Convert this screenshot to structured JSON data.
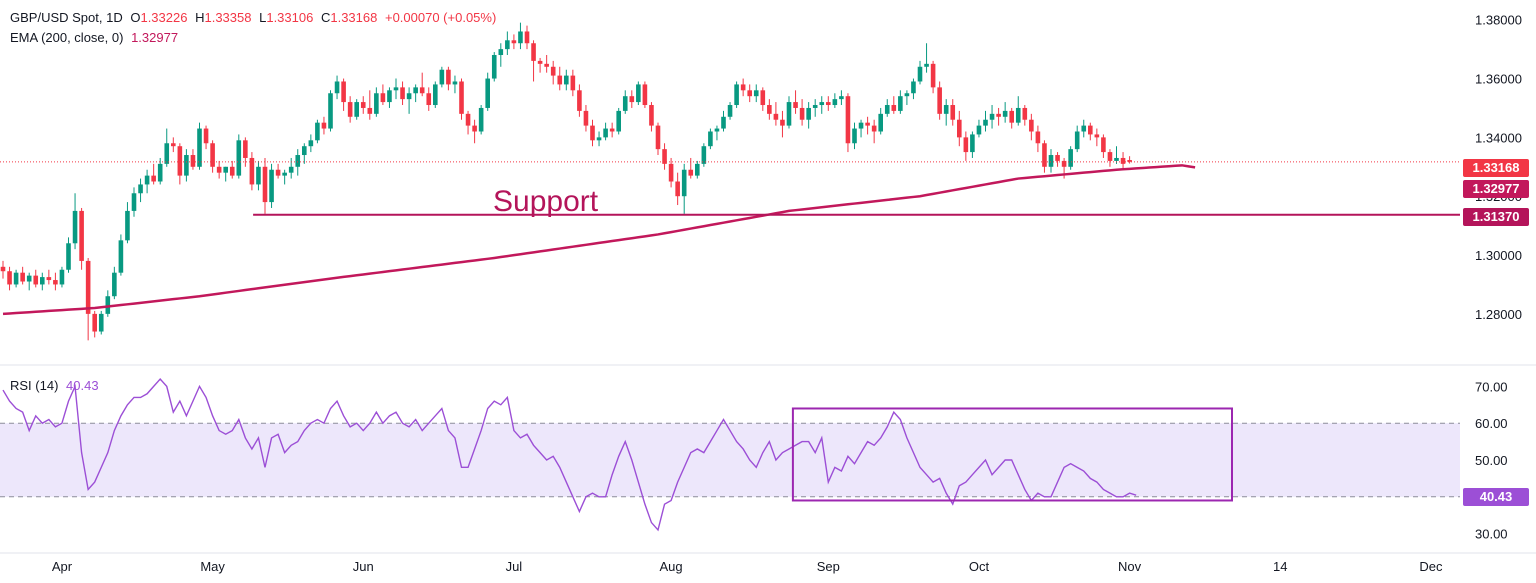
{
  "header": {
    "symbol": "GBP/USD Spot, 1D",
    "open_label": "O",
    "open": "1.33226",
    "high_label": "H",
    "high": "1.33358",
    "low_label": "L",
    "low": "1.33106",
    "close_label": "C",
    "close": "1.33168",
    "change": "+0.00070 (+0.05%)"
  },
  "ema_legend": {
    "label": "EMA (200, close, 0)",
    "value": "1.32977"
  },
  "rsi_legend": {
    "label": "RSI (14)",
    "value": "40.43"
  },
  "tags": {
    "last_price": "1.33168",
    "ema": "1.32977",
    "support": "1.31370",
    "rsi": "40.43"
  },
  "annotation": {
    "support_text": "Support"
  },
  "colors": {
    "up": "#089981",
    "down": "#f23645",
    "ema": "#c2185b",
    "support": "#b4145a",
    "rsi": "#9c4fd6",
    "rsi_band": "#ede7fb",
    "box": "#9c27b0"
  },
  "chart_data": [
    {
      "type": "candlestick",
      "ylim": [
        1.265,
        1.385
      ],
      "y_ticks": [
        "1.28000",
        "1.30000",
        "1.32000",
        "1.34000",
        "1.36000",
        "1.38000"
      ],
      "x_ticks": [
        "Apr",
        "May",
        "Jun",
        "Jul",
        "Aug",
        "Sep",
        "Oct",
        "Nov",
        "14",
        "Dec"
      ],
      "candles": [
        [
          1.296,
          1.298,
          1.292,
          1.2945
        ],
        [
          1.2945,
          1.296,
          1.288,
          1.29
        ],
        [
          1.29,
          1.295,
          1.289,
          1.294
        ],
        [
          1.294,
          1.296,
          1.29,
          1.291
        ],
        [
          1.291,
          1.294,
          1.288,
          1.293
        ],
        [
          1.293,
          1.295,
          1.289,
          1.29
        ],
        [
          1.29,
          1.294,
          1.288,
          1.2925
        ],
        [
          1.2925,
          1.295,
          1.29,
          1.2915
        ],
        [
          1.2915,
          1.294,
          1.288,
          1.29
        ],
        [
          1.29,
          1.296,
          1.289,
          1.295
        ],
        [
          1.295,
          1.306,
          1.294,
          1.304
        ],
        [
          1.304,
          1.321,
          1.302,
          1.315
        ],
        [
          1.315,
          1.316,
          1.295,
          1.298
        ],
        [
          1.298,
          1.299,
          1.271,
          1.28
        ],
        [
          1.28,
          1.281,
          1.272,
          1.274
        ],
        [
          1.274,
          1.281,
          1.273,
          1.28
        ],
        [
          1.28,
          1.288,
          1.279,
          1.286
        ],
        [
          1.286,
          1.296,
          1.285,
          1.294
        ],
        [
          1.294,
          1.307,
          1.293,
          1.305
        ],
        [
          1.305,
          1.318,
          1.304,
          1.315
        ],
        [
          1.315,
          1.323,
          1.313,
          1.321
        ],
        [
          1.321,
          1.326,
          1.318,
          1.324
        ],
        [
          1.324,
          1.329,
          1.321,
          1.327
        ],
        [
          1.327,
          1.331,
          1.324,
          1.325
        ],
        [
          1.325,
          1.333,
          1.324,
          1.331
        ],
        [
          1.331,
          1.343,
          1.33,
          1.338
        ],
        [
          1.338,
          1.34,
          1.335,
          1.337
        ],
        [
          1.337,
          1.338,
          1.324,
          1.327
        ],
        [
          1.327,
          1.336,
          1.325,
          1.334
        ],
        [
          1.334,
          1.336,
          1.329,
          1.33
        ],
        [
          1.33,
          1.345,
          1.329,
          1.343
        ],
        [
          1.343,
          1.344,
          1.336,
          1.338
        ],
        [
          1.338,
          1.339,
          1.328,
          1.33
        ],
        [
          1.33,
          1.332,
          1.326,
          1.328
        ],
        [
          1.328,
          1.33,
          1.325,
          1.33
        ],
        [
          1.33,
          1.332,
          1.326,
          1.327
        ],
        [
          1.327,
          1.341,
          1.326,
          1.339
        ],
        [
          1.339,
          1.34,
          1.33,
          1.333
        ],
        [
          1.333,
          1.335,
          1.322,
          1.324
        ],
        [
          1.324,
          1.332,
          1.322,
          1.33
        ],
        [
          1.33,
          1.333,
          1.314,
          1.318
        ],
        [
          1.318,
          1.331,
          1.316,
          1.329
        ],
        [
          1.329,
          1.331,
          1.326,
          1.327
        ],
        [
          1.327,
          1.329,
          1.324,
          1.328
        ],
        [
          1.328,
          1.333,
          1.326,
          1.33
        ],
        [
          1.33,
          1.336,
          1.327,
          1.334
        ],
        [
          1.334,
          1.338,
          1.331,
          1.337
        ],
        [
          1.337,
          1.341,
          1.335,
          1.339
        ],
        [
          1.339,
          1.346,
          1.338,
          1.345
        ],
        [
          1.345,
          1.347,
          1.341,
          1.343
        ],
        [
          1.343,
          1.356,
          1.342,
          1.355
        ],
        [
          1.355,
          1.361,
          1.353,
          1.359
        ],
        [
          1.359,
          1.36,
          1.349,
          1.352
        ],
        [
          1.352,
          1.354,
          1.345,
          1.347
        ],
        [
          1.347,
          1.353,
          1.346,
          1.352
        ],
        [
          1.352,
          1.354,
          1.348,
          1.35
        ],
        [
          1.35,
          1.356,
          1.346,
          1.348
        ],
        [
          1.348,
          1.357,
          1.347,
          1.355
        ],
        [
          1.355,
          1.358,
          1.351,
          1.352
        ],
        [
          1.352,
          1.357,
          1.35,
          1.356
        ],
        [
          1.356,
          1.36,
          1.353,
          1.357
        ],
        [
          1.357,
          1.359,
          1.351,
          1.353
        ],
        [
          1.353,
          1.357,
          1.348,
          1.355
        ],
        [
          1.355,
          1.358,
          1.352,
          1.357
        ],
        [
          1.357,
          1.362,
          1.354,
          1.355
        ],
        [
          1.355,
          1.357,
          1.349,
          1.351
        ],
        [
          1.351,
          1.359,
          1.35,
          1.358
        ],
        [
          1.358,
          1.364,
          1.357,
          1.363
        ],
        [
          1.363,
          1.364,
          1.356,
          1.358
        ],
        [
          1.358,
          1.361,
          1.355,
          1.359
        ],
        [
          1.359,
          1.36,
          1.346,
          1.348
        ],
        [
          1.348,
          1.349,
          1.341,
          1.344
        ],
        [
          1.344,
          1.346,
          1.338,
          1.342
        ],
        [
          1.342,
          1.351,
          1.341,
          1.35
        ],
        [
          1.35,
          1.362,
          1.349,
          1.36
        ],
        [
          1.36,
          1.369,
          1.359,
          1.368
        ],
        [
          1.368,
          1.372,
          1.364,
          1.37
        ],
        [
          1.37,
          1.376,
          1.368,
          1.373
        ],
        [
          1.373,
          1.375,
          1.37,
          1.372
        ],
        [
          1.372,
          1.379,
          1.37,
          1.376
        ],
        [
          1.376,
          1.378,
          1.37,
          1.372
        ],
        [
          1.372,
          1.373,
          1.359,
          1.366
        ],
        [
          1.366,
          1.367,
          1.362,
          1.365
        ],
        [
          1.365,
          1.368,
          1.362,
          1.364
        ],
        [
          1.364,
          1.366,
          1.358,
          1.361
        ],
        [
          1.361,
          1.364,
          1.356,
          1.358
        ],
        [
          1.358,
          1.363,
          1.356,
          1.361
        ],
        [
          1.361,
          1.363,
          1.354,
          1.356
        ],
        [
          1.356,
          1.358,
          1.347,
          1.349
        ],
        [
          1.349,
          1.351,
          1.342,
          1.344
        ],
        [
          1.344,
          1.346,
          1.337,
          1.339
        ],
        [
          1.339,
          1.342,
          1.337,
          1.34
        ],
        [
          1.34,
          1.345,
          1.339,
          1.343
        ],
        [
          1.343,
          1.345,
          1.34,
          1.342
        ],
        [
          1.342,
          1.35,
          1.341,
          1.349
        ],
        [
          1.349,
          1.356,
          1.348,
          1.354
        ],
        [
          1.354,
          1.356,
          1.35,
          1.352
        ],
        [
          1.352,
          1.359,
          1.351,
          1.358
        ],
        [
          1.358,
          1.359,
          1.35,
          1.351
        ],
        [
          1.351,
          1.352,
          1.342,
          1.344
        ],
        [
          1.344,
          1.345,
          1.334,
          1.336
        ],
        [
          1.336,
          1.338,
          1.329,
          1.331
        ],
        [
          1.331,
          1.333,
          1.323,
          1.325
        ],
        [
          1.325,
          1.328,
          1.317,
          1.32
        ],
        [
          1.32,
          1.331,
          1.314,
          1.329
        ],
        [
          1.329,
          1.333,
          1.326,
          1.327
        ],
        [
          1.327,
          1.332,
          1.326,
          1.331
        ],
        [
          1.331,
          1.338,
          1.33,
          1.337
        ],
        [
          1.337,
          1.343,
          1.336,
          1.342
        ],
        [
          1.342,
          1.344,
          1.339,
          1.343
        ],
        [
          1.343,
          1.349,
          1.342,
          1.347
        ],
        [
          1.347,
          1.352,
          1.346,
          1.351
        ],
        [
          1.351,
          1.359,
          1.35,
          1.358
        ],
        [
          1.358,
          1.36,
          1.354,
          1.356
        ],
        [
          1.356,
          1.358,
          1.352,
          1.354
        ],
        [
          1.354,
          1.358,
          1.352,
          1.356
        ],
        [
          1.356,
          1.357,
          1.349,
          1.351
        ],
        [
          1.351,
          1.353,
          1.346,
          1.348
        ],
        [
          1.348,
          1.352,
          1.344,
          1.346
        ],
        [
          1.346,
          1.349,
          1.34,
          1.344
        ],
        [
          1.344,
          1.354,
          1.343,
          1.352
        ],
        [
          1.352,
          1.356,
          1.348,
          1.35
        ],
        [
          1.35,
          1.353,
          1.344,
          1.346
        ],
        [
          1.346,
          1.352,
          1.343,
          1.35
        ],
        [
          1.35,
          1.353,
          1.347,
          1.351
        ],
        [
          1.351,
          1.354,
          1.348,
          1.352
        ],
        [
          1.352,
          1.354,
          1.349,
          1.351
        ],
        [
          1.351,
          1.355,
          1.35,
          1.353
        ],
        [
          1.353,
          1.356,
          1.351,
          1.354
        ],
        [
          1.354,
          1.355,
          1.335,
          1.338
        ],
        [
          1.338,
          1.345,
          1.336,
          1.343
        ],
        [
          1.343,
          1.346,
          1.34,
          1.345
        ],
        [
          1.345,
          1.347,
          1.341,
          1.344
        ],
        [
          1.344,
          1.346,
          1.338,
          1.342
        ],
        [
          1.342,
          1.35,
          1.341,
          1.348
        ],
        [
          1.348,
          1.353,
          1.347,
          1.351
        ],
        [
          1.351,
          1.354,
          1.348,
          1.349
        ],
        [
          1.349,
          1.356,
          1.348,
          1.354
        ],
        [
          1.354,
          1.356,
          1.351,
          1.355
        ],
        [
          1.355,
          1.36,
          1.353,
          1.359
        ],
        [
          1.359,
          1.366,
          1.358,
          1.364
        ],
        [
          1.364,
          1.372,
          1.362,
          1.365
        ],
        [
          1.365,
          1.366,
          1.355,
          1.357
        ],
        [
          1.357,
          1.359,
          1.346,
          1.348
        ],
        [
          1.348,
          1.353,
          1.344,
          1.351
        ],
        [
          1.351,
          1.353,
          1.344,
          1.346
        ],
        [
          1.346,
          1.349,
          1.337,
          1.34
        ],
        [
          1.34,
          1.342,
          1.332,
          1.335
        ],
        [
          1.335,
          1.342,
          1.333,
          1.341
        ],
        [
          1.341,
          1.346,
          1.34,
          1.344
        ],
        [
          1.344,
          1.349,
          1.342,
          1.346
        ],
        [
          1.346,
          1.351,
          1.343,
          1.348
        ],
        [
          1.348,
          1.35,
          1.344,
          1.347
        ],
        [
          1.347,
          1.352,
          1.345,
          1.349
        ],
        [
          1.349,
          1.35,
          1.343,
          1.345
        ],
        [
          1.345,
          1.354,
          1.344,
          1.35
        ],
        [
          1.35,
          1.351,
          1.344,
          1.346
        ],
        [
          1.346,
          1.348,
          1.339,
          1.342
        ],
        [
          1.342,
          1.344,
          1.335,
          1.338
        ],
        [
          1.338,
          1.339,
          1.328,
          1.33
        ],
        [
          1.33,
          1.336,
          1.328,
          1.334
        ],
        [
          1.334,
          1.335,
          1.33,
          1.332
        ],
        [
          1.332,
          1.333,
          1.326,
          1.33
        ],
        [
          1.33,
          1.337,
          1.329,
          1.336
        ],
        [
          1.336,
          1.344,
          1.335,
          1.342
        ],
        [
          1.342,
          1.346,
          1.34,
          1.344
        ],
        [
          1.344,
          1.345,
          1.339,
          1.341
        ],
        [
          1.341,
          1.343,
          1.337,
          1.34
        ],
        [
          1.34,
          1.341,
          1.333,
          1.335
        ],
        [
          1.335,
          1.336,
          1.33,
          1.332
        ],
        [
          1.332,
          1.337,
          1.331,
          1.333
        ],
        [
          1.333,
          1.335,
          1.329,
          1.331
        ],
        [
          1.3323,
          1.3336,
          1.3311,
          1.3317
        ]
      ]
    },
    {
      "type": "line",
      "name": "EMA (200, close, 0)",
      "values": [
        1.28,
        1.282,
        1.286,
        1.292,
        1.299,
        1.307,
        1.315,
        1.32,
        1.326,
        1.329,
        1.3305,
        1.3298
      ],
      "x_index": [
        0,
        14,
        30,
        50,
        75,
        100,
        120,
        140,
        155,
        170,
        180,
        182
      ]
    },
    {
      "type": "hline",
      "name": "Support",
      "value": 1.3137,
      "x_index_start": 42
    },
    {
      "type": "line",
      "name": "RSI (14)",
      "ylim": [
        25,
        75
      ],
      "y_ticks": [
        "30.00",
        "40.00",
        "50.00",
        "60.00",
        "70.00"
      ],
      "band": [
        40,
        60
      ],
      "values": [
        69,
        66,
        64,
        63,
        58,
        62,
        60,
        61,
        59,
        60,
        66,
        70,
        52,
        42,
        44,
        48,
        52,
        58,
        62,
        65,
        67,
        67,
        68,
        70,
        72,
        70,
        63,
        66,
        62,
        66,
        70,
        67,
        62,
        58,
        57,
        58,
        61,
        56,
        53,
        56,
        48,
        56,
        57,
        52,
        54,
        55,
        58,
        60,
        61,
        60,
        64,
        66,
        62,
        59,
        60,
        58,
        60,
        63,
        60,
        62,
        63,
        60,
        59,
        61,
        58,
        60,
        62,
        64,
        58,
        56,
        48,
        48,
        53,
        58,
        64,
        66,
        65,
        67,
        58,
        56,
        57,
        54,
        52,
        50,
        51,
        48,
        44,
        40,
        36,
        40,
        41,
        40,
        40,
        46,
        51,
        55,
        50,
        44,
        38,
        33,
        31,
        38,
        39,
        44,
        48,
        52,
        53,
        52,
        55,
        58,
        61,
        58,
        55,
        53,
        50,
        48,
        52,
        55,
        50,
        52,
        53,
        54,
        55,
        55,
        52,
        56,
        44,
        48,
        47,
        51,
        49,
        52,
        55,
        54,
        56,
        59,
        63,
        61,
        56,
        52,
        48,
        46,
        44,
        45,
        41,
        38,
        43,
        44,
        46,
        48,
        50,
        46,
        48,
        50,
        50,
        46,
        42,
        39,
        41,
        40,
        40,
        44,
        48,
        49,
        48,
        47,
        45,
        44,
        42,
        41,
        40,
        40,
        41,
        40.43
      ],
      "box": {
        "x_index_start": 118,
        "x_index_end": 180,
        "y_range": [
          39,
          64
        ]
      }
    }
  ]
}
